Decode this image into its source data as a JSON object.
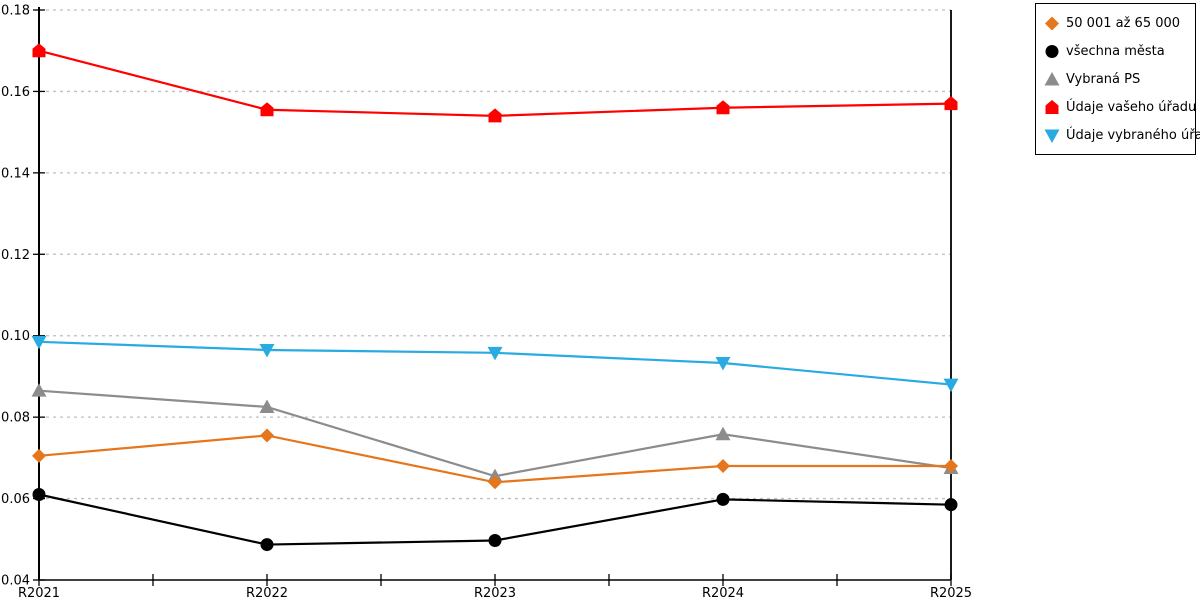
{
  "chart_data": {
    "type": "line",
    "title": "",
    "xlabel": "",
    "ylabel": "",
    "categories": [
      "R2021",
      "R2022",
      "R2023",
      "R2024",
      "R2025"
    ],
    "series": [
      {
        "name": "50 001 až 65 000",
        "color": "#E5761C",
        "marker": "diamond",
        "values": [
          0.0705,
          0.0755,
          0.064,
          0.068,
          0.068
        ]
      },
      {
        "name": "všechna města",
        "color": "#000000",
        "marker": "circle",
        "values": [
          0.061,
          0.0487,
          0.0497,
          0.0598,
          0.0585
        ]
      },
      {
        "name": "Vybraná PS",
        "color": "#8C8C8C",
        "marker": "triangle-up",
        "values": [
          0.0865,
          0.0825,
          0.0655,
          0.0758,
          0.0675
        ]
      },
      {
        "name": "Údaje vašeho úřadu",
        "color": "#FF0000",
        "marker": "pentagon-up",
        "values": [
          0.17,
          0.1555,
          0.154,
          0.156,
          0.157
        ]
      },
      {
        "name": "Údaje vybraného úřadu",
        "color": "#29ABE2",
        "marker": "triangle-down",
        "values": [
          0.0985,
          0.0965,
          0.0958,
          0.0933,
          0.088
        ]
      }
    ],
    "ylim": [
      0.04,
      0.18
    ],
    "ytick_step": 0.02,
    "ytick_labels": [
      "0.04",
      "0.06",
      "0.08",
      "0.10",
      "0.12",
      "0.14",
      "0.16",
      "0.18"
    ],
    "grid": "dashed-horizontal",
    "gridline_color": "#BFBFBF",
    "axis_color": "#000000",
    "legend_position": "top-right"
  }
}
